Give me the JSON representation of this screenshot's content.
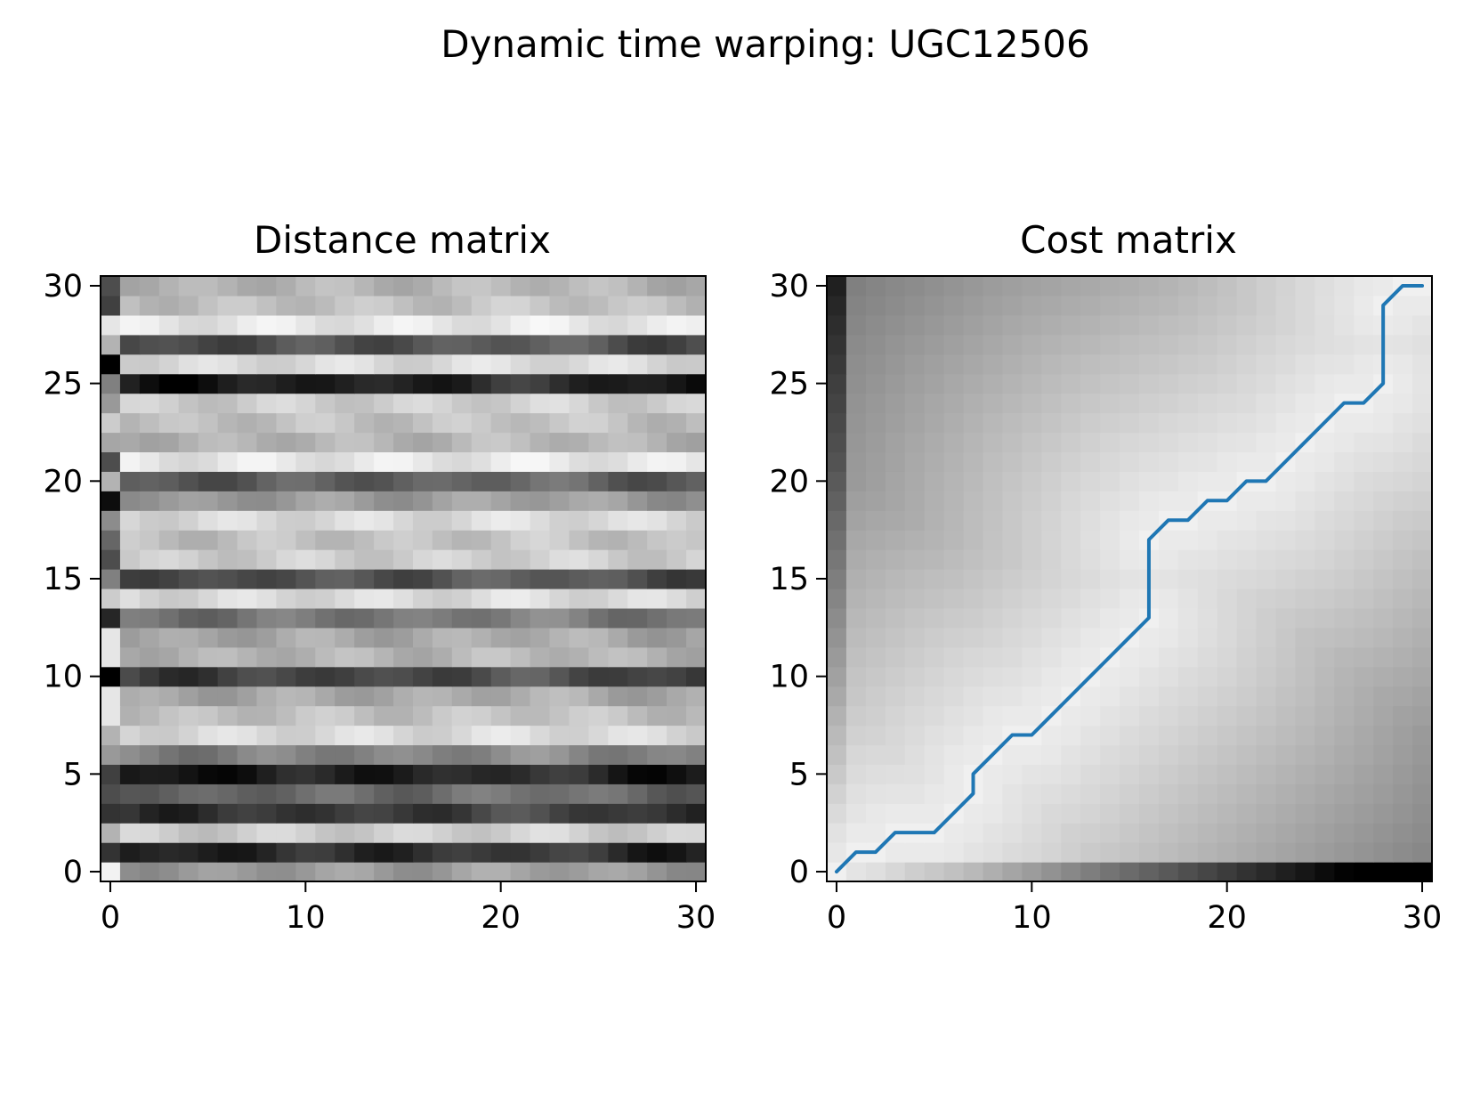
{
  "figure": {
    "title": "Dynamic time warping: UGC12506"
  },
  "chart_data": [
    {
      "type": "heatmap",
      "title": "Distance matrix",
      "colormap": "grayscale (dark = high, light = low)",
      "origin": "lower",
      "grid": false,
      "xlim": [
        -0.5,
        30.5
      ],
      "ylim": [
        -0.5,
        30.5
      ],
      "xticks": [
        0,
        10,
        20,
        30
      ],
      "yticks": [
        0,
        5,
        10,
        15,
        20,
        25,
        30
      ],
      "xticklabels": [
        "0",
        "10",
        "20",
        "30"
      ],
      "yticklabels": [
        "0",
        "5",
        "10",
        "15",
        "20",
        "25",
        "30"
      ],
      "rows": 31,
      "cols": 31,
      "row_levels": [
        0.4,
        0.85,
        0.2,
        0.8,
        0.6,
        0.9,
        0.5,
        0.15,
        0.25,
        0.35,
        0.75,
        0.3,
        0.35,
        0.55,
        0.15,
        0.7,
        0.2,
        0.25,
        0.15,
        0.4,
        0.65,
        0.1,
        0.3,
        0.25,
        0.2,
        0.9,
        0.15,
        0.7,
        0.1,
        0.25,
        0.3
      ],
      "left_column_levels": [
        0.05,
        0.8,
        0.3,
        0.8,
        0.7,
        0.75,
        0.4,
        0.3,
        0.1,
        0.1,
        1.0,
        0.1,
        0.1,
        0.85,
        0.2,
        0.5,
        0.7,
        0.6,
        0.45,
        0.95,
        0.3,
        0.7,
        0.35,
        0.2,
        0.4,
        0.5,
        1.0,
        0.3,
        0.1,
        0.75,
        0.7
      ]
    },
    {
      "type": "heatmap",
      "title": "Cost matrix",
      "colormap": "grayscale (dark = high accumulated cost, light = low)",
      "origin": "lower",
      "grid": false,
      "xlim": [
        -0.5,
        30.5
      ],
      "ylim": [
        -0.5,
        30.5
      ],
      "xticks": [
        0,
        10,
        20,
        30
      ],
      "yticks": [
        0,
        5,
        10,
        15,
        20,
        25,
        30
      ],
      "xticklabels": [
        "0",
        "10",
        "20",
        "30"
      ],
      "yticklabels": [
        "0",
        "5",
        "10",
        "15",
        "20",
        "25",
        "30"
      ],
      "rows": 31,
      "cols": 31,
      "warping_path": {
        "color": "#1f77b4",
        "x": [
          0,
          1,
          2,
          3,
          4,
          5,
          6,
          7,
          7,
          8,
          9,
          10,
          11,
          12,
          13,
          14,
          15,
          16,
          16,
          17,
          18,
          19,
          20,
          21,
          22,
          23,
          24,
          25,
          26,
          27,
          28,
          28,
          29,
          30
        ],
        "y": [
          0,
          1,
          1,
          2,
          2,
          2,
          3,
          4,
          5,
          6,
          7,
          7,
          8,
          9,
          10,
          11,
          12,
          13,
          17,
          18,
          18,
          19,
          19,
          20,
          20,
          21,
          22,
          23,
          24,
          24,
          25,
          29,
          30,
          30
        ]
      }
    }
  ]
}
